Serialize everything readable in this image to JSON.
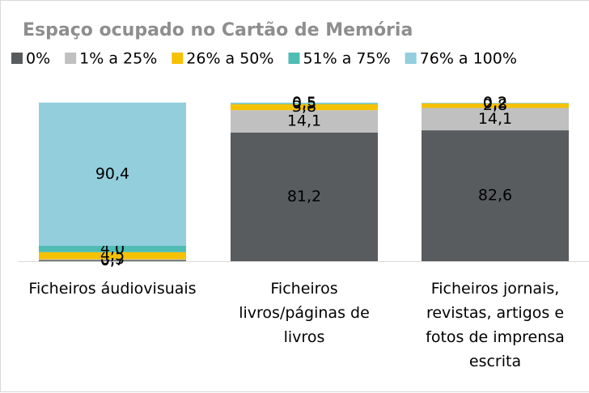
{
  "chart_data": {
    "type": "stacked_bar",
    "title": "Espaço ocupado no Cartão de Memória",
    "categories": [
      "Ficheiros áudiovisuais",
      "Ficheiros livros/páginas de livros",
      "Ficheiros jornais, revistas, artigos e fotos de imprensa escrita"
    ],
    "series": [
      {
        "name": "0%",
        "color": "#595c5f",
        "values": [
          0.7,
          81.2,
          82.6
        ],
        "value_labels": [
          "0,7",
          "81,2",
          "82,6"
        ]
      },
      {
        "name": "1% a 25%",
        "color": "#c0c0c0",
        "values": [
          0.5,
          14.1,
          14.1
        ],
        "value_labels": [
          "0,5",
          "14,1",
          "14,1"
        ]
      },
      {
        "name": "26% a 50%",
        "color": "#f5c100",
        "values": [
          4.5,
          3.8,
          2.8
        ],
        "value_labels": [
          "4,5",
          "3,8",
          "2,8"
        ]
      },
      {
        "name": "51% a 75%",
        "color": "#4fbdb3",
        "values": [
          4.0,
          0.5,
          0.2
        ],
        "value_labels": [
          "4,0",
          "0,5",
          "0,2"
        ]
      },
      {
        "name": "76% a 100%",
        "color": "#93cedd",
        "values": [
          90.4,
          0.5,
          0.2
        ],
        "value_labels": [
          "90,4",
          "0,5",
          "0,2"
        ]
      }
    ],
    "ylim": [
      0,
      100
    ],
    "legend": "top"
  }
}
